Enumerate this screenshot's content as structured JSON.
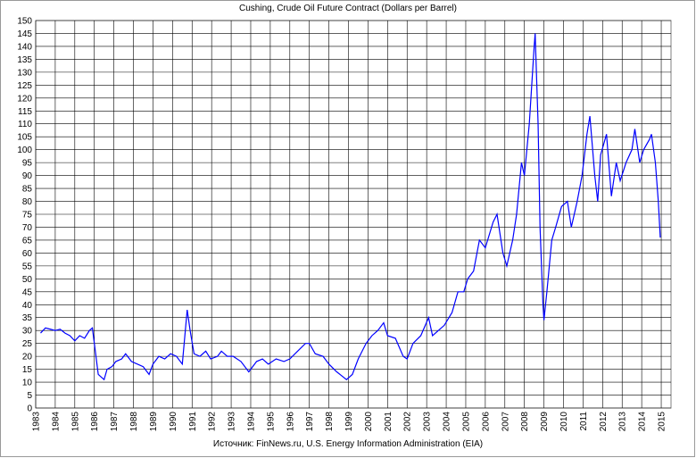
{
  "chart_data": {
    "type": "line",
    "title": "Cushing, Crude Oil Future Contract (Dollars per Barrel)",
    "source": "Источник: FinNews.ru, U.S. Energy Information Administration (EIA)",
    "x": [
      1983.25,
      1983.5,
      1983.75,
      1984.0,
      1984.25,
      1984.5,
      1984.75,
      1985.0,
      1985.25,
      1985.5,
      1985.75,
      1985.9,
      1986.05,
      1986.2,
      1986.35,
      1986.5,
      1986.65,
      1986.9,
      1987.1,
      1987.4,
      1987.6,
      1987.9,
      1988.2,
      1988.5,
      1988.8,
      1989.0,
      1989.3,
      1989.6,
      1989.9,
      1990.2,
      1990.5,
      1990.75,
      1990.9,
      1991.1,
      1991.4,
      1991.7,
      1991.95,
      1992.3,
      1992.5,
      1992.8,
      1993.1,
      1993.5,
      1993.9,
      1994.3,
      1994.6,
      1994.9,
      1995.3,
      1995.7,
      1996.0,
      1996.4,
      1996.8,
      1997.0,
      1997.3,
      1997.7,
      1998.0,
      1998.4,
      1998.9,
      1999.2,
      1999.5,
      1999.9,
      2000.2,
      2000.5,
      2000.8,
      2001.0,
      2001.4,
      2001.8,
      2002.0,
      2002.3,
      2002.7,
      2003.1,
      2003.3,
      2003.6,
      2003.9,
      2004.3,
      2004.6,
      2004.9,
      2005.1,
      2005.4,
      2005.7,
      2006.0,
      2006.4,
      2006.6,
      2006.9,
      2007.1,
      2007.4,
      2007.6,
      2007.85,
      2008.0,
      2008.25,
      2008.5,
      2008.55,
      2008.7,
      2008.8,
      2008.95,
      2009.0,
      2009.15,
      2009.4,
      2009.6,
      2009.9,
      2010.2,
      2010.4,
      2010.7,
      2010.95,
      2011.2,
      2011.35,
      2011.6,
      2011.75,
      2011.9,
      2012.2,
      2012.45,
      2012.7,
      2012.9,
      2013.2,
      2013.5,
      2013.65,
      2013.9,
      2014.1,
      2014.4,
      2014.5,
      2014.7,
      2014.85,
      2014.95
    ],
    "series": [
      {
        "name": "Cushing",
        "color": "#0000ff",
        "values": [
          29,
          31,
          30.5,
          30,
          30.5,
          29,
          28,
          26,
          28,
          27,
          30,
          31,
          22,
          13,
          12,
          11,
          15,
          16,
          18,
          19,
          21,
          18,
          17,
          16,
          13,
          17,
          20,
          19,
          21,
          20,
          17,
          38,
          30,
          21,
          20,
          22,
          19,
          20,
          22,
          20,
          20,
          18,
          14,
          18,
          19,
          17,
          19,
          18,
          19,
          22,
          25,
          25,
          21,
          20,
          17,
          14,
          11,
          13,
          19,
          25,
          28,
          30,
          33,
          28,
          27,
          20,
          19,
          25,
          28,
          35,
          28,
          30,
          32,
          37,
          45,
          45,
          50,
          53,
          65,
          62,
          72,
          75,
          60,
          55,
          65,
          75,
          95,
          90,
          110,
          140,
          145,
          110,
          70,
          40,
          34,
          45,
          65,
          70,
          78,
          80,
          70,
          80,
          90,
          106,
          113,
          90,
          80,
          98,
          106,
          82,
          95,
          88,
          95,
          100,
          108,
          95,
          100,
          104,
          106,
          95,
          80,
          66
        ]
      }
    ],
    "xlim": [
      1983,
      2015.5
    ],
    "xticks": [
      1983,
      1984,
      1985,
      1986,
      1987,
      1988,
      1989,
      1990,
      1991,
      1992,
      1993,
      1994,
      1995,
      1996,
      1997,
      1998,
      1999,
      2000,
      2001,
      2002,
      2003,
      2004,
      2005,
      2006,
      2007,
      2008,
      2009,
      2010,
      2011,
      2012,
      2013,
      2014,
      2015
    ],
    "ylim": [
      0,
      150
    ],
    "yticks": [
      0,
      5,
      10,
      15,
      20,
      25,
      30,
      35,
      40,
      45,
      50,
      55,
      60,
      65,
      70,
      75,
      80,
      85,
      90,
      95,
      100,
      105,
      110,
      115,
      120,
      125,
      130,
      135,
      140,
      145,
      150
    ],
    "grid": true
  }
}
